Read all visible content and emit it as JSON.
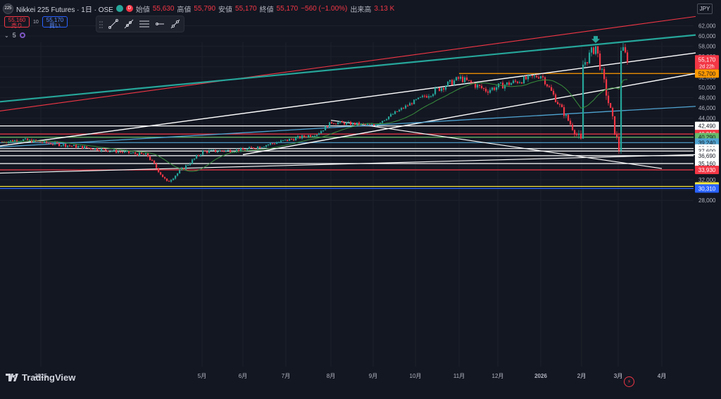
{
  "header": {
    "symbol_icon": "225",
    "symbol": "Nikkei 225 Futures · 1日 · OSE",
    "status_icon": "market-open-dot",
    "delay_badge": "D",
    "open_label": "始値",
    "open": "55,630",
    "high_label": "高値",
    "high": "55,790",
    "low_label": "安値",
    "low": "55,170",
    "close_label": "終値",
    "close": "55,170",
    "change": "−560 (−1.00%)",
    "volume_label": "出来高",
    "volume": "3.13 K"
  },
  "trade": {
    "sell_price": "55,160",
    "sell_label": "売り",
    "spread": "10",
    "buy_price": "55,170",
    "buy_label": "買い"
  },
  "indicator": {
    "collapse_icon": "chevron-down-icon",
    "label": "5"
  },
  "toolbar": {
    "tools": [
      "trend-line-icon",
      "ray-icon",
      "parallel-channel-icon",
      "horizontal-ray-icon",
      "extended-line-icon"
    ]
  },
  "currency": "JPY",
  "branding": {
    "name": "TradingView"
  },
  "colors": {
    "up": "#26a69a",
    "down": "#f23645",
    "bg": "#131722",
    "grid": "#1c202b",
    "ma": "#388e3c",
    "white_line": "#ffffff",
    "red_line": "#f23645",
    "teal_line": "#26a69a",
    "blue_line": "#4fa3d1",
    "orange": "#ff9800",
    "green_level": "#66bb6a",
    "yellow": "#ffeb3b",
    "dark_blue": "#2962ff"
  },
  "chart_data": {
    "type": "candlestick",
    "title": "Nikkei 225 Futures · 1日 · OSE",
    "y_axis": {
      "ticks": [
        28000,
        30000,
        32000,
        34000,
        36000,
        38000,
        40000,
        42000,
        44000,
        46000,
        48000,
        50000,
        52000,
        54000,
        56000,
        58000,
        60000,
        62000
      ],
      "ylim": [
        27000,
        63000
      ]
    },
    "x_axis": {
      "ticks": [
        "2025",
        "2月",
        "3月",
        "4月",
        "5月",
        "6月",
        "7月",
        "8月",
        "9月",
        "10月",
        "11月",
        "12月",
        "2026",
        "2月",
        "3月",
        "4月"
      ],
      "bold": [
        "2025",
        "2026"
      ]
    },
    "last_price": {
      "value": 55170,
      "label": "55,170",
      "countdown": "2d 22h"
    },
    "horizontal_levels": [
      {
        "value": 52700,
        "label": "52,700",
        "color": "#ff9800",
        "start": "11月"
      },
      {
        "value": 42490,
        "label": "42,490",
        "color": "#ffffff"
      },
      {
        "value": 40910,
        "label": "40,910",
        "color": "#f23645"
      },
      {
        "value": 40290,
        "label": "40,290",
        "color": "#66bb6a"
      },
      {
        "value": 39240,
        "label": "39,240",
        "color": "#4fa3d1"
      },
      {
        "value": 38090,
        "label": "38,090",
        "color": "#ffffff"
      },
      {
        "value": 37600,
        "label": "37,600",
        "color": "#ffffff"
      },
      {
        "value": 36690,
        "label": "36,690",
        "color": "#ffffff"
      },
      {
        "value": 35160,
        "label": "35,160",
        "color": "#ffffff"
      },
      {
        "value": 33930,
        "label": "33,930",
        "color": "#f23645"
      },
      {
        "value": 30710,
        "label": "30,710",
        "color": "#ffeb3b"
      },
      {
        "value": 30310,
        "label": "30,310",
        "color": "#2962ff"
      }
    ],
    "trend_lines": [
      {
        "color": "#f23645",
        "width": 1.1,
        "from": [
          "2025",
          45400
        ],
        "to": [
          "4月+",
          63800
        ]
      },
      {
        "color": "#26a69a",
        "width": 2.2,
        "from": [
          "2025",
          47200
        ],
        "to": [
          "4月+",
          60200
        ]
      },
      {
        "color": "#ffffff",
        "width": 1.4,
        "from": [
          "2025",
          38600
        ],
        "to": [
          "4月+",
          56700
        ]
      },
      {
        "color": "#ffffff",
        "width": 1.4,
        "from": [
          "6月",
          36900
        ],
        "to": [
          "4月+",
          52700
        ]
      },
      {
        "color": "#ffffff",
        "width": 1.1,
        "from": [
          "2025",
          33300
        ],
        "to": [
          "4月+",
          36900
        ]
      },
      {
        "color": "#ffffff",
        "width": 1.1,
        "from": [
          "4月",
          34200
        ],
        "to": [
          "8月",
          43600
        ]
      },
      {
        "color": "#4fa3d1",
        "width": 1.3,
        "from": [
          "2025",
          38400
        ],
        "to": [
          "4月+",
          46300
        ]
      }
    ],
    "marker": {
      "type": "arrow-down",
      "at": "2月",
      "value": 58900,
      "color": "#26a69a"
    },
    "ohlc_waypoints": [
      [
        "2025",
        39400
      ],
      [
        "1月",
        39800
      ],
      [
        "2月",
        38900
      ],
      [
        "3月",
        38000
      ],
      [
        "3月末",
        36800
      ],
      [
        "4月初",
        31500
      ],
      [
        "4月",
        33800
      ],
      [
        "5月",
        37500
      ],
      [
        "6月",
        37800
      ],
      [
        "7月",
        39700
      ],
      [
        "7月末",
        41000
      ],
      [
        "8月",
        43200
      ],
      [
        "9月",
        42600
      ],
      [
        "10月",
        47500
      ],
      [
        "11月",
        51800
      ],
      [
        "11月末",
        49400
      ],
      [
        "12月",
        50200
      ],
      [
        "2026",
        52400
      ],
      [
        "2月",
        54200
      ],
      [
        "2月中",
        58000
      ],
      [
        "3月",
        58300
      ],
      [
        "3月現在",
        55170
      ]
    ]
  }
}
